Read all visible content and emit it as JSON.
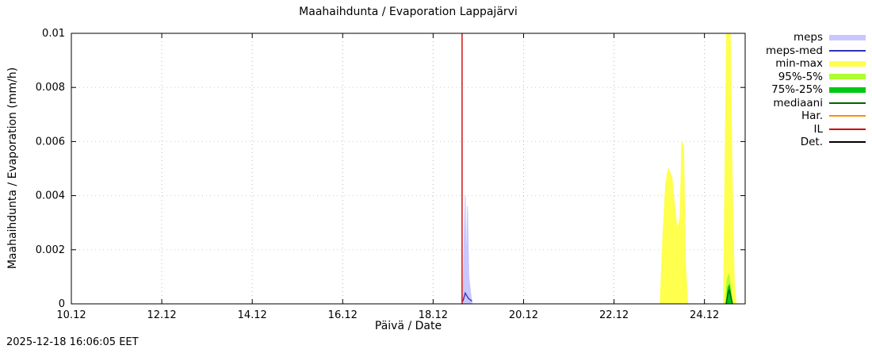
{
  "chart_data": {
    "type": "area",
    "title": "Maahaihdunta / Evaporation  Lappajärvi",
    "xlabel": "Päivä / Date",
    "ylabel": "Maahaihdunta / Evaporation (mm/h)",
    "xlim": [
      10,
      24.9
    ],
    "ylim": [
      0,
      0.01
    ],
    "grid": true,
    "legend_position": "outside-right-top",
    "x_ticks": [
      {
        "v": 10,
        "label": "10.12"
      },
      {
        "v": 12,
        "label": "12.12"
      },
      {
        "v": 14,
        "label": "14.12"
      },
      {
        "v": 16,
        "label": "16.12"
      },
      {
        "v": 18,
        "label": "18.12"
      },
      {
        "v": 20,
        "label": "20.12"
      },
      {
        "v": 22,
        "label": "22.12"
      },
      {
        "v": 24,
        "label": "24.12"
      }
    ],
    "y_ticks": [
      {
        "v": 0,
        "label": "0"
      },
      {
        "v": 0.002,
        "label": "0.002"
      },
      {
        "v": 0.004,
        "label": "0.004"
      },
      {
        "v": 0.006,
        "label": "0.006"
      },
      {
        "v": 0.008,
        "label": "0.008"
      },
      {
        "v": 0.01,
        "label": "0.01"
      }
    ],
    "series": [
      {
        "name": "meps",
        "kind": "area",
        "color": "#c8c8ff",
        "regions": [
          [
            [
              18.66,
              0
            ],
            [
              18.69,
              0.0028
            ],
            [
              18.71,
              0.004
            ],
            [
              18.73,
              0.0012
            ],
            [
              18.76,
              0.0036
            ],
            [
              18.79,
              0.001
            ],
            [
              18.83,
              0.0004
            ],
            [
              18.86,
              0
            ]
          ]
        ]
      },
      {
        "name": "meps-med",
        "kind": "line",
        "color": "#3333b4",
        "regions": [
          [
            [
              18.66,
              0.0001
            ],
            [
              18.71,
              0.0004
            ],
            [
              18.78,
              0.0002
            ],
            [
              18.86,
              0.0001
            ]
          ]
        ]
      },
      {
        "name": "min-max",
        "kind": "area",
        "color": "#ffff4d",
        "regions": [
          [
            [
              23.02,
              0
            ],
            [
              23.08,
              0.0025
            ],
            [
              23.14,
              0.0044
            ],
            [
              23.2,
              0.005
            ],
            [
              23.28,
              0.0047
            ],
            [
              23.34,
              0.0036
            ],
            [
              23.4,
              0.0027
            ],
            [
              23.46,
              0.0032
            ],
            [
              23.5,
              0.006
            ],
            [
              23.54,
              0.0058
            ],
            [
              23.58,
              0.0015
            ],
            [
              23.63,
              0
            ]
          ],
          [
            [
              24.42,
              0
            ],
            [
              24.46,
              0.006
            ],
            [
              24.49,
              0.01
            ],
            [
              24.57,
              0.01
            ],
            [
              24.61,
              0.005
            ],
            [
              24.66,
              0.0008
            ],
            [
              24.7,
              0
            ]
          ]
        ]
      },
      {
        "name": "95%-5%",
        "kind": "area",
        "color": "#adff2f",
        "regions": [
          [
            [
              24.46,
              0
            ],
            [
              24.5,
              0.0009
            ],
            [
              24.54,
              0.0011
            ],
            [
              24.58,
              0.0006
            ],
            [
              24.62,
              0
            ]
          ]
        ]
      },
      {
        "name": "75%-25%",
        "kind": "area",
        "color": "#00c814",
        "regions": [
          [
            [
              24.48,
              0
            ],
            [
              24.52,
              0.0006
            ],
            [
              24.55,
              0.0007
            ],
            [
              24.59,
              0.0003
            ],
            [
              24.62,
              0
            ]
          ]
        ]
      },
      {
        "name": "mediaani",
        "kind": "line",
        "color": "#006400",
        "regions": [
          [
            [
              24.48,
              0
            ],
            [
              24.52,
              0.0004
            ],
            [
              24.55,
              0.0005
            ],
            [
              24.59,
              0.0002
            ],
            [
              24.62,
              0
            ]
          ]
        ]
      },
      {
        "name": "Har.",
        "kind": "line",
        "color": "#ff8c00",
        "regions": []
      },
      {
        "name": "IL",
        "kind": "line",
        "color": "#cc0000",
        "regions": [
          [
            [
              18.64,
              0
            ],
            [
              18.64,
              0.01
            ]
          ]
        ]
      },
      {
        "name": "Det.",
        "kind": "line",
        "color": "#000000",
        "regions": []
      }
    ]
  },
  "footer": {
    "timestamp": "2025-12-18 16:06:05 EET"
  }
}
